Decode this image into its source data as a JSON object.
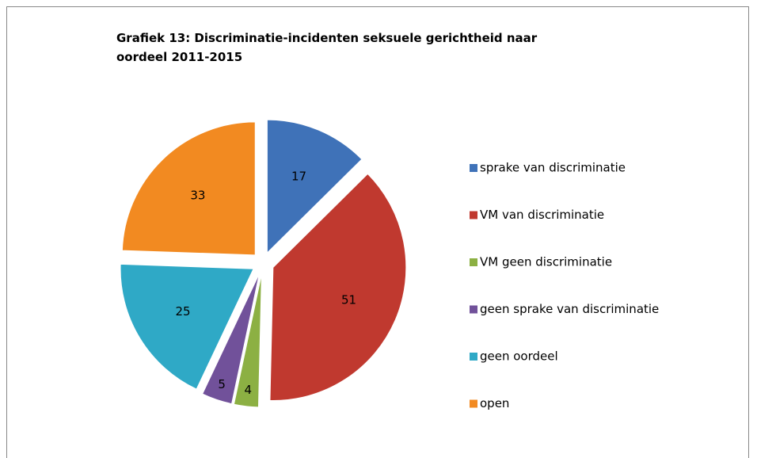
{
  "chart_data": {
    "type": "pie",
    "title": "Grafiek 13: Discriminatie-incidenten seksuele gerichtheid naar oordeel 2011-2015",
    "categories": [
      "sprake van discriminatie",
      "VM van discriminatie",
      "VM geen discriminatie",
      "geen sprake van discriminatie",
      "geen oordeel",
      "open"
    ],
    "values": [
      17,
      51,
      4,
      5,
      25,
      33
    ],
    "colors": [
      "#3f72b8",
      "#c0392f",
      "#8cb043",
      "#71519a",
      "#2fa9c6",
      "#f28a21"
    ],
    "legend": "right"
  }
}
